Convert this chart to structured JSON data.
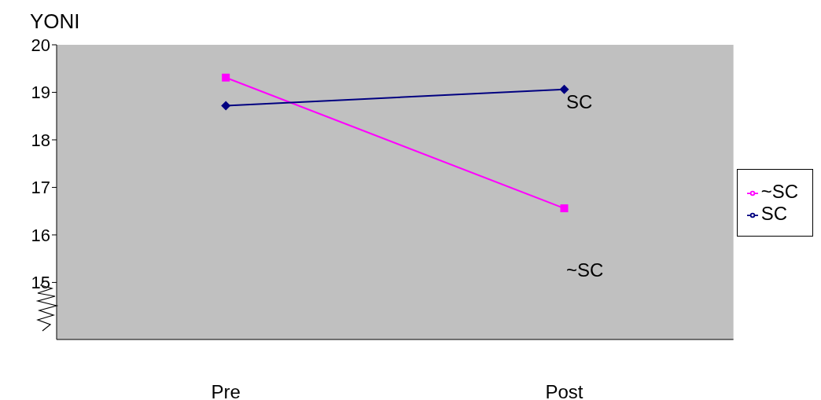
{
  "chart_data": {
    "type": "line",
    "ylabel": "YONI",
    "categories": [
      "Pre",
      "Post"
    ],
    "series": [
      {
        "name": "~SC",
        "color": "#ff00ff",
        "marker": "square",
        "values": [
          19.31,
          16.56
        ]
      },
      {
        "name": "SC",
        "color": "#000080",
        "marker": "diamond",
        "values": [
          18.72,
          19.06
        ]
      }
    ],
    "ylim": [
      13.8,
      20
    ],
    "yticks": [
      15,
      16,
      17,
      18,
      19,
      20
    ],
    "grid": false,
    "legend": "right",
    "annotations": [
      "SC",
      "~SC"
    ]
  }
}
